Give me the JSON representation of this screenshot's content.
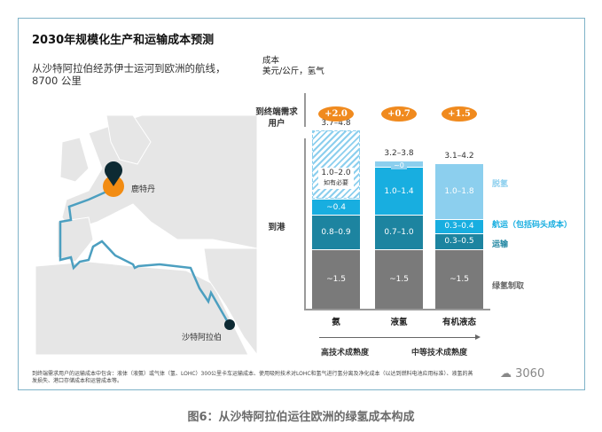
{
  "title": "2030年规模化生产和运输成本预测",
  "subtitle": "从沙特阿拉伯经苏伊士运河到欧洲的航线，8700 公里",
  "map": {
    "origin_label": "沙特阿拉伯",
    "destination_label": "鹿特丹"
  },
  "chart_data": {
    "type": "bar",
    "stacked": true,
    "title": "成本",
    "ylabel": "美元/公斤，氢气",
    "row_labels": {
      "end_user": "到终端需求用户",
      "port": "到港"
    },
    "categories": [
      "氨",
      "液氢",
      "有机液态"
    ],
    "x_arrow": {
      "left": "高技术成熟度",
      "right": "中等技术成熟度"
    },
    "legend": [
      {
        "name": "脱氢",
        "color": "#8ccfee"
      },
      {
        "name": "航运（包括码头成本）",
        "color": "#18aee0"
      },
      {
        "name": "运输",
        "color": "#1d84a0"
      },
      {
        "name": "绿氢制取",
        "color": "#7a7a7a"
      }
    ],
    "bars": [
      {
        "category": "氨",
        "port_total": "3.7–4.8",
        "end_user_extra": "+2.0",
        "segments": [
          {
            "series": "绿氢制取",
            "label": "~1.5",
            "value": 1.5
          },
          {
            "series": "运输",
            "label": "0.8–0.9",
            "value": 0.85
          },
          {
            "series": "航运（包括码头成本）",
            "label": "~0.4",
            "value": 0.4
          },
          {
            "series": "脱氢",
            "label": "1.0–2.0",
            "note": "如有必要",
            "value": 1.5,
            "optional": true
          }
        ]
      },
      {
        "category": "液氢",
        "port_total": "3.2–3.8",
        "end_user_extra": "+0.7",
        "segments": [
          {
            "series": "绿氢制取",
            "label": "~1.5",
            "value": 1.5
          },
          {
            "series": "运输",
            "label": "0.7–1.0",
            "value": 0.85
          },
          {
            "series": "航运（包括码头成本）",
            "label": "1.0–1.4",
            "value": 1.2
          },
          {
            "series": "脱氢",
            "label": "~0",
            "value": 0
          }
        ]
      },
      {
        "category": "有机液态",
        "port_total": "3.1–4.2",
        "end_user_extra": "+1.5",
        "segments": [
          {
            "series": "绿氢制取",
            "label": "~1.5",
            "value": 1.5
          },
          {
            "series": "运输",
            "label": "0.3–0.5",
            "value": 0.4
          },
          {
            "series": "航运（包括码头成本）",
            "label": "0.3–0.4",
            "value": 0.35
          },
          {
            "series": "脱氢",
            "label": "1.0–1.8",
            "value": 1.4
          }
        ]
      }
    ]
  },
  "footnote": "到终端需求用户的运输成本中包含：液体（液氨）或气体（氢、LOHC）300公里卡车运输成本、使用吸附技术对LOHC和氢气进行氢分离及净化成本（以达到燃料电池应用标准）、液氢的蒸发损失、港口存储成本和运营成本等。",
  "watermark": "3060",
  "caption": "图6：从沙特阿拉伯运往欧洲的绿氢成本构成"
}
